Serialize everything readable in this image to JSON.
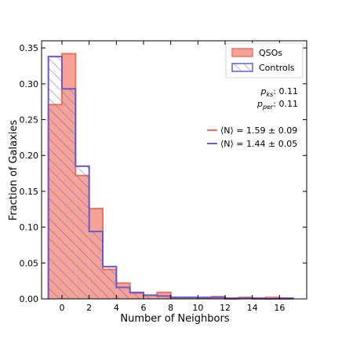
{
  "chart_data": {
    "type": "histogram",
    "xlabel": "Number of Neighbors",
    "ylabel": "Fraction of Galaxies",
    "xlim": [
      -1.5,
      18
    ],
    "ylim": [
      0,
      0.36
    ],
    "bin_edges": [
      -1,
      0,
      1,
      2,
      3,
      4,
      5,
      6,
      7,
      8,
      9,
      10,
      11,
      12,
      13,
      14,
      15,
      16,
      17
    ],
    "x_ticks": [
      0,
      2,
      4,
      6,
      8,
      10,
      12,
      14,
      16
    ],
    "y_ticks": [
      0.0,
      0.05,
      0.1,
      0.15,
      0.2,
      0.25,
      0.3,
      0.35
    ],
    "y_tick_labels": [
      "0.00",
      "0.05",
      "0.10",
      "0.15",
      "0.20",
      "0.25",
      "0.30",
      "0.35"
    ],
    "series": [
      {
        "name": "QSOs",
        "style": "filled",
        "color": "#f4a396",
        "edge_color": "#f0715f",
        "line_color": "#f0715f",
        "values": [
          0.271,
          0.342,
          0.172,
          0.126,
          0.041,
          0.022,
          0.008,
          0.005,
          0.009,
          0.002,
          0.002,
          0.001,
          0.003,
          0.0,
          0.002,
          0.0,
          0.002,
          0.0
        ]
      },
      {
        "name": "Controls",
        "style": "hatched",
        "color": "#6a5acd",
        "edge_color": "#6a5acd",
        "line_color": "#6a5acd",
        "values": [
          0.338,
          0.293,
          0.185,
          0.094,
          0.045,
          0.016,
          0.009,
          0.005,
          0.004,
          0.002,
          0.002,
          0.002,
          0.002,
          0.001,
          0.001,
          0.001,
          0.0,
          0.001
        ]
      }
    ],
    "legend": {
      "placement": "top-right",
      "entries": [
        "QSOs",
        "Controls"
      ]
    },
    "annotations": {
      "pks_label": "p",
      "pks_sub": "ks",
      "pks_value": ": 0.11",
      "pper_label": "p",
      "pper_sub": "per",
      "pper_value": ": 0.11",
      "mean_lines": [
        {
          "series": "QSOs",
          "text": "⟨N⟩ = 1.59 ± 0.09"
        },
        {
          "series": "Controls",
          "text": "⟨N⟩ = 1.44 ± 0.05"
        }
      ]
    }
  }
}
